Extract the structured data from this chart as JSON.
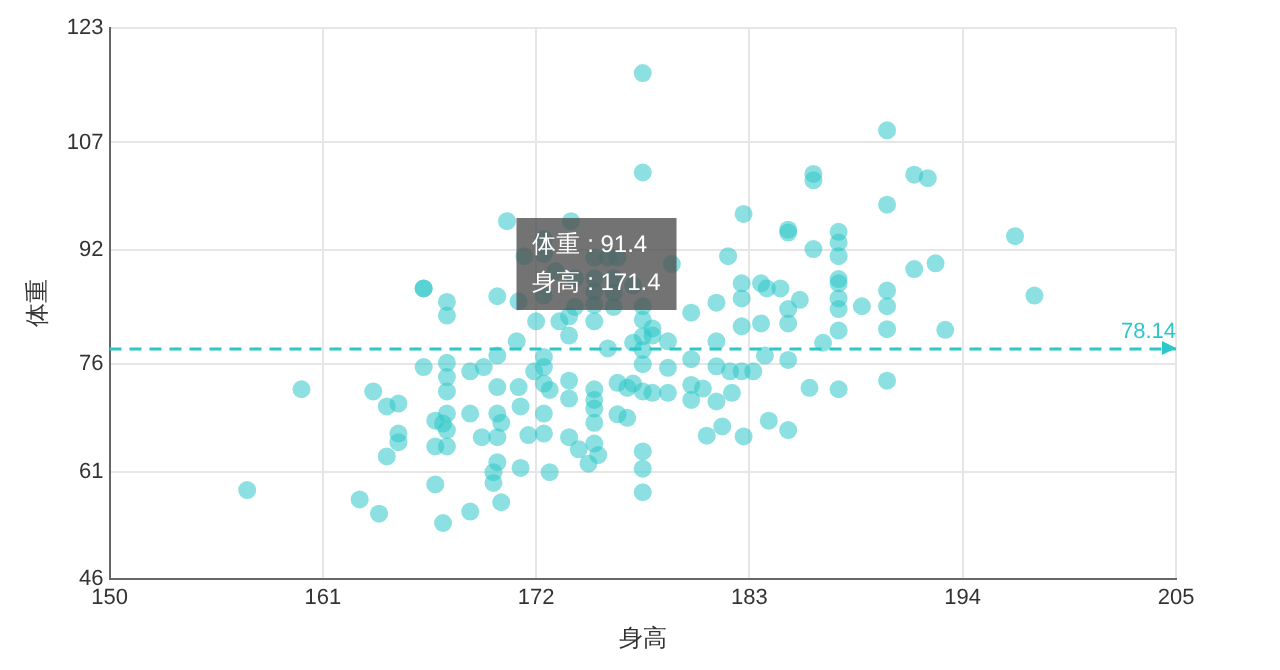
{
  "chart_data": {
    "type": "scatter",
    "xlabel": "身高",
    "ylabel": "体重",
    "xlim": [
      150,
      205
    ],
    "xticks": [
      150,
      161,
      172,
      183,
      194,
      205
    ],
    "ylim": [
      46,
      123
    ],
    "yticks": [
      46,
      61,
      76,
      92,
      107,
      123
    ],
    "grid": true,
    "marker": "circle",
    "legend": false,
    "series": [
      {
        "color": "#2ec7c9",
        "x": [
          159.9,
          157.1,
          162.9,
          163.9,
          163.6,
          164.3,
          164.9,
          164.9,
          164.9,
          164.3,
          166.2,
          166.2,
          166.8,
          167.2,
          166.8,
          167.4,
          166.8,
          167.4,
          167.4,
          167.2,
          167.4,
          167.4,
          167.4,
          167.4,
          167.4,
          168.6,
          169.3,
          168.6,
          169.2,
          168.6,
          170,
          170,
          170,
          170,
          170,
          169.8,
          169.8,
          170.2,
          170.2,
          170,
          171,
          171.1,
          171.1,
          171.2,
          171.2,
          171.6,
          171.9,
          172.4,
          172.4,
          172.4,
          172.4,
          172.4,
          172.7,
          172.7,
          173.2,
          173.7,
          173.7,
          173.7,
          173.7,
          173.7,
          174.2,
          174.7,
          175,
          175,
          175,
          175,
          175,
          175.2,
          175,
          175,
          175.7,
          176.2,
          176.2,
          176.7,
          176.7,
          177,
          177.5,
          177.5,
          177.5,
          177.5,
          177.5,
          177.5,
          177.5,
          177.5,
          177.5,
          178,
          178.8,
          178.8,
          178.8,
          180,
          180,
          180,
          180.6,
          180,
          181.3,
          181.3,
          181.3,
          181.3,
          182.1,
          181.6,
          180.8,
          182.6,
          182.6,
          182,
          182.6,
          183.2,
          182.7,
          183.6,
          183.8,
          184,
          185,
          185,
          185,
          185,
          185.6,
          186.1,
          186.8,
          187.6,
          187.6,
          187.6,
          187.6,
          188.8,
          190.1,
          190.1,
          190.1,
          193.1,
          197.7,
          177.5,
          177.5,
          182.7,
          181.9,
          182.6,
          183.6,
          184.6,
          183.9,
          185,
          185,
          186.3,
          186.3,
          186.3,
          187.6,
          187.6,
          187.6,
          187.6,
          187.6,
          190.1,
          190.1,
          190.1,
          191.5,
          191.5,
          192.2,
          192.6,
          196.7,
          170.5,
          171.4,
          172.4,
          172.4,
          173.8,
          175,
          175.7,
          176.2,
          166.2,
          172.4,
          175,
          174,
          176,
          175,
          173,
          177,
          176,
          174,
          172,
          177,
          178,
          178,
          179,
          176
        ],
        "values": [
          72.5,
          58.4,
          57.1,
          55.1,
          72.2,
          70.1,
          70.5,
          66.3,
          65.1,
          63.1,
          75.6,
          86.6,
          59.2,
          53.8,
          64.5,
          64.5,
          68.1,
          69.1,
          66.8,
          67.7,
          76.2,
          74.2,
          72.2,
          84.7,
          82.8,
          75,
          75.6,
          69.1,
          65.8,
          55.4,
          77.2,
          72.8,
          69.1,
          65.8,
          62.3,
          60.9,
          59.4,
          67.8,
          56.7,
          85.5,
          79.2,
          84.8,
          72.8,
          70.1,
          61.5,
          66.1,
          75,
          77,
          75.6,
          73.3,
          69.1,
          66.3,
          60.9,
          72.4,
          82,
          82.7,
          80,
          73.7,
          71.2,
          65.8,
          64.1,
          62.1,
          72.5,
          71,
          69.8,
          67.8,
          64.9,
          63.3,
          82,
          84.3,
          78.2,
          73.4,
          69,
          68.5,
          72.7,
          73.3,
          84.1,
          82.2,
          79.9,
          78,
          76,
          72.2,
          63.8,
          61.4,
          58.1,
          72,
          79.2,
          75.5,
          72,
          83.2,
          76.7,
          73.1,
          72.6,
          71,
          84.6,
          79.2,
          75.7,
          70.8,
          72,
          67.3,
          66,
          85.2,
          81.3,
          75,
          75,
          75,
          65.9,
          81.7,
          77.2,
          68.1,
          83.7,
          81.7,
          76.6,
          66.8,
          85,
          72.7,
          79,
          85.2,
          83.7,
          80.7,
          72.5,
          84.1,
          84.1,
          80.9,
          73.7,
          80.8,
          85.6,
          116.7,
          102.8,
          97,
          91.1,
          87.3,
          87.3,
          86.6,
          86.6,
          94.8,
          94.4,
          102.6,
          101.7,
          92.1,
          87.9,
          94.5,
          93,
          91.1,
          87.3,
          86.3,
          108.7,
          98.3,
          89.3,
          102.5,
          102,
          90.1,
          93.9,
          96,
          91.1,
          93.5,
          91.4,
          96,
          90.9,
          90.9,
          90.9,
          86.6,
          85.6,
          86.2,
          84,
          84,
          88,
          89,
          87,
          86,
          88,
          82,
          79,
          81,
          80,
          90,
          88
        ]
      }
    ],
    "ref_lines": [
      {
        "axis": "y",
        "value": 78.14,
        "label": "78.14",
        "color": "#2ec7c9",
        "line_style": "dashed"
      }
    ],
    "annotations": [
      {
        "text": "体重 : 91.4\n身高 : 171.4",
        "x": 171.4,
        "y": 91.4
      }
    ]
  }
}
